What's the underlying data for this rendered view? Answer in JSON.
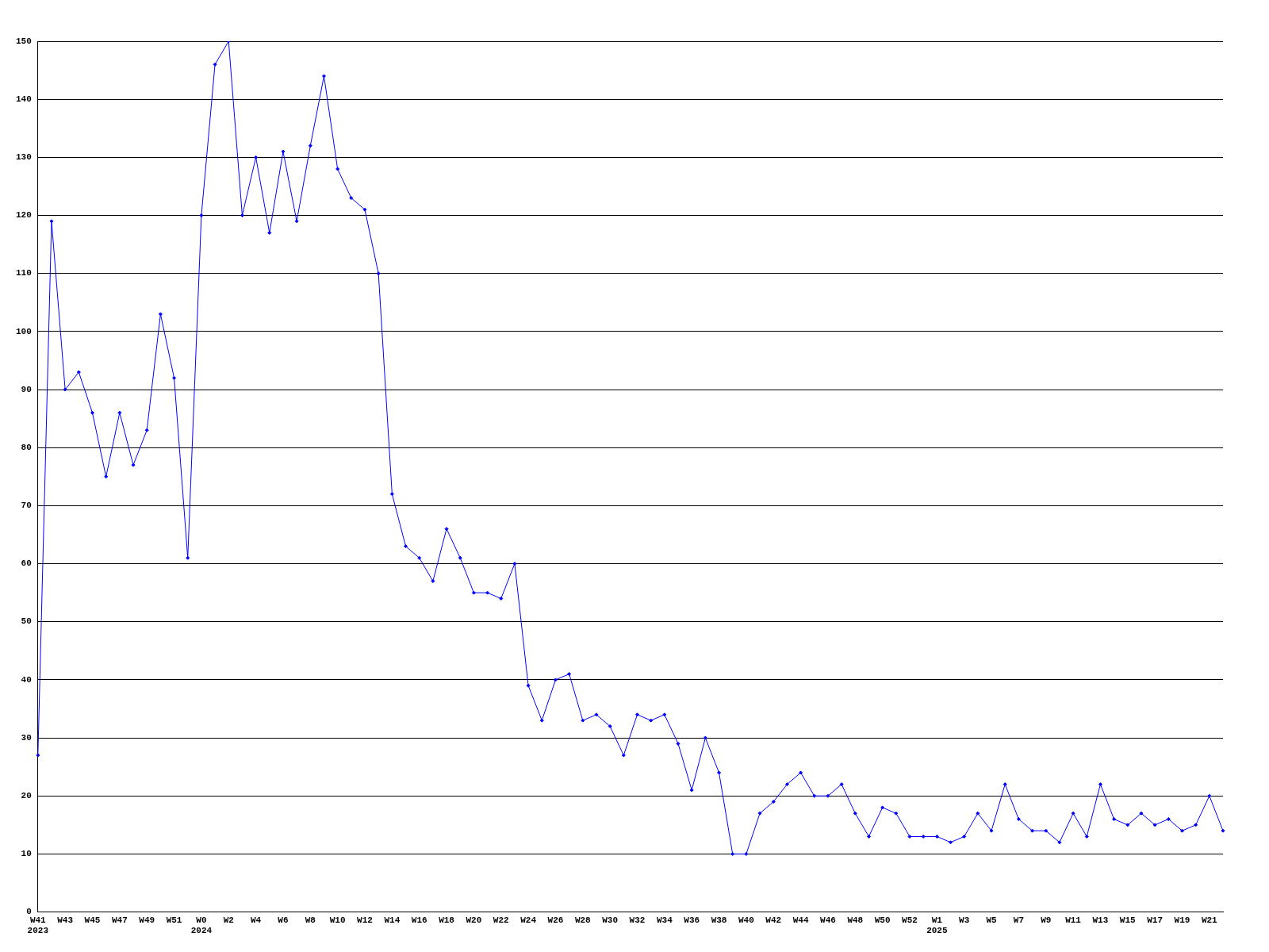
{
  "chart_data": {
    "type": "line",
    "categories": [
      "W41\n2023",
      null,
      "W43",
      null,
      "W45",
      null,
      "W47",
      null,
      "W49",
      null,
      "W51",
      null,
      "W0\n2024",
      null,
      "W2",
      null,
      "W4",
      null,
      "W6",
      null,
      "W8",
      null,
      "W10",
      null,
      "W12",
      null,
      "W14",
      null,
      "W16",
      null,
      "W18",
      null,
      "W20",
      null,
      "W22",
      null,
      "W24",
      null,
      "W26",
      null,
      "W28",
      null,
      "W30",
      null,
      "W32",
      null,
      "W34",
      null,
      "W36",
      null,
      "W38",
      null,
      "W40",
      null,
      "W42",
      null,
      "W44",
      null,
      "W46",
      null,
      "W48",
      null,
      "W50",
      null,
      "W52",
      null,
      "W1\n2025",
      null,
      "W3",
      null,
      "W5",
      null,
      "W7",
      null,
      "W9",
      null,
      "W11",
      null,
      "W13",
      null,
      "W15",
      null,
      "W17",
      null,
      "W19",
      null,
      "W21",
      null
    ],
    "series": [
      {
        "color": "#0000ff",
        "values": [
          27,
          119,
          90,
          93,
          86,
          75,
          86,
          77,
          83,
          103,
          92,
          61,
          120,
          146,
          150,
          120,
          130,
          117,
          131,
          119,
          132,
          144,
          128,
          123,
          121,
          110,
          72,
          63,
          61,
          57,
          66,
          61,
          55,
          55,
          54,
          60,
          39,
          33,
          40,
          41,
          33,
          34,
          32,
          27,
          34,
          33,
          34,
          29,
          21,
          30,
          24,
          10,
          10,
          17,
          19,
          22,
          24,
          20,
          20,
          22,
          17,
          13,
          18,
          17,
          13,
          13,
          13,
          12,
          13,
          17,
          14,
          22,
          16,
          14,
          14,
          12,
          17,
          13,
          22,
          16,
          15,
          17,
          15,
          16,
          14,
          15,
          20,
          14
        ]
      }
    ],
    "ylim": [
      0,
      150
    ],
    "yticks": [
      0,
      10,
      20,
      30,
      40,
      50,
      60,
      70,
      80,
      90,
      100,
      110,
      120,
      130,
      140,
      150
    ],
    "grid": "y",
    "marker": "diamond",
    "line_style": "solid",
    "legend": false
  }
}
